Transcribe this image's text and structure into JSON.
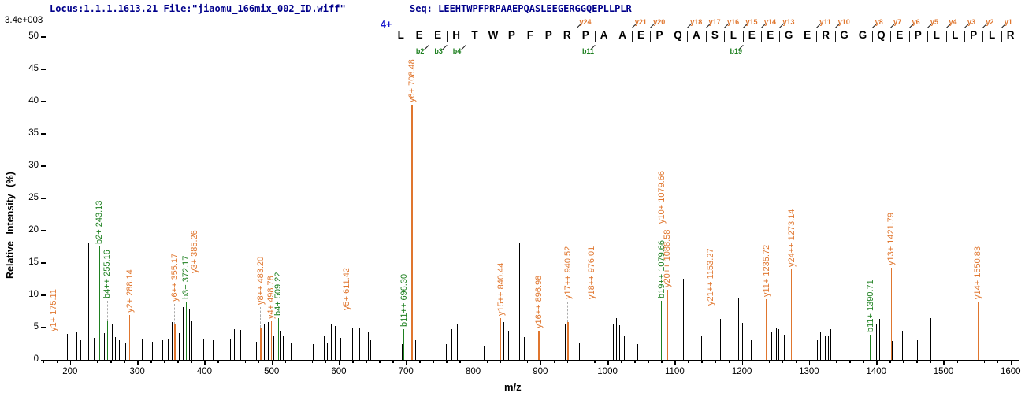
{
  "header": {
    "locus_file": "Locus:1.1.1.1613.21 File:\"jiaomu_166mix_002_ID.wiff\"",
    "seq_line": "Seq: LEEHTWPFPRPAAEPQASLEEGERGGQEPLLPLR",
    "max_intensity": "3.4e+003",
    "precursor_charge": "4+"
  },
  "axes": {
    "x_label": "m/z",
    "y_label": "Relative Intensity (%)",
    "x_range": [
      165,
      1612
    ],
    "y_range": [
      0,
      50.6
    ],
    "x_ticks_major": [
      200,
      300,
      400,
      500,
      600,
      700,
      800,
      900,
      1000,
      1100,
      1200,
      1300,
      1400,
      1500,
      1600
    ],
    "x_minor_start": 160,
    "x_minor_step": 20,
    "x_minor_end": 1600,
    "y_ticks": [
      0,
      5,
      10,
      15,
      20,
      25,
      30,
      35,
      40,
      45,
      50
    ]
  },
  "colors": {
    "y_ion": "#E0762E",
    "b_ion": "#1E8020",
    "peak": "#000000",
    "title": "#00008B",
    "charge": "#1414CC",
    "dash": "#ABABAB"
  },
  "chart_data": {
    "type": "bar",
    "subtype": "ms2-fragment-spectrum",
    "title": "",
    "xlabel": "m/z",
    "ylabel": "Relative Intensity (%)",
    "xlim": [
      165,
      1612
    ],
    "ylim": [
      0,
      50
    ],
    "sequence": "LEEHTWPFPRPAAEPQASLEEGERGGQEPLLPLR",
    "fragment_markers": [
      {
        "after": 2,
        "b": "b2"
      },
      {
        "after": 3,
        "b": "b3"
      },
      {
        "after": 4,
        "b": "b4"
      },
      {
        "after": 10,
        "y": "y24"
      },
      {
        "after": 11,
        "b": "b11"
      },
      {
        "after": 13,
        "y": "y21"
      },
      {
        "after": 14,
        "y": "y20"
      },
      {
        "after": 16,
        "y": "y18"
      },
      {
        "after": 17,
        "y": "y17"
      },
      {
        "after": 18,
        "y": "y16"
      },
      {
        "after": 19,
        "y": "y15",
        "b": "b19"
      },
      {
        "after": 20,
        "y": "y14"
      },
      {
        "after": 21,
        "y": "y13"
      },
      {
        "after": 23,
        "y": "y11"
      },
      {
        "after": 24,
        "y": "y10"
      },
      {
        "after": 26,
        "y": "y8"
      },
      {
        "after": 27,
        "y": "y7"
      },
      {
        "after": 28,
        "y": "y6"
      },
      {
        "after": 29,
        "y": "y5"
      },
      {
        "after": 30,
        "y": "y4"
      },
      {
        "after": 31,
        "y": "y3"
      },
      {
        "after": 32,
        "y": "y2"
      },
      {
        "after": 33,
        "y": "y1"
      }
    ],
    "labeled_peaks": [
      {
        "label": "y1+ 175.11",
        "mz": 175.11,
        "pct": 4.0,
        "ion": "y",
        "dashed": false,
        "raise": 0
      },
      {
        "label": "b2+ 243.13",
        "mz": 243.13,
        "pct": 17.5,
        "ion": "b",
        "dashed": false,
        "raise": 0
      },
      {
        "label": "b4++ 255.16",
        "mz": 255.16,
        "pct": 6.0,
        "ion": "b",
        "dashed": true,
        "raise": 0
      },
      {
        "label": "y2+ 288.14",
        "mz": 288.14,
        "pct": 7.0,
        "ion": "y",
        "dashed": false,
        "raise": 0
      },
      {
        "label": "y6++ 355.17",
        "mz": 355.17,
        "pct": 5.5,
        "ion": "y",
        "dashed": true,
        "raise": 0
      },
      {
        "label": "b3+ 372.17",
        "mz": 372.17,
        "pct": 9.0,
        "ion": "b",
        "dashed": false,
        "raise": 0
      },
      {
        "label": "y3+ 385.26",
        "mz": 385.26,
        "pct": 13.0,
        "ion": "y",
        "dashed": false,
        "raise": 0
      },
      {
        "label": "y8++ 483.20",
        "mz": 483.2,
        "pct": 5.0,
        "ion": "y",
        "dashed": true,
        "raise": 0
      },
      {
        "label": "y4+ 498.78",
        "mz": 498.78,
        "pct": 6.0,
        "ion": "y",
        "dashed": false,
        "raise": 0
      },
      {
        "label": "b4+ 509.22",
        "mz": 509.22,
        "pct": 6.5,
        "ion": "b",
        "dashed": false,
        "raise": 0
      },
      {
        "label": "y5+ 611.42",
        "mz": 611.42,
        "pct": 4.2,
        "ion": "y",
        "dashed": true,
        "raise": 0
      },
      {
        "label": "b11++ 696.30",
        "mz": 696.3,
        "pct": 4.8,
        "ion": "b",
        "dashed": false,
        "raise": 0
      },
      {
        "label": "y6+ 708.48",
        "mz": 708.48,
        "pct": 39.5,
        "ion": "y",
        "dashed": false,
        "raise": 0
      },
      {
        "label": "y15++ 840.44",
        "mz": 840.44,
        "pct": 6.5,
        "ion": "y",
        "dashed": false,
        "raise": 0
      },
      {
        "label": "y16++ 896.98",
        "mz": 896.98,
        "pct": 4.5,
        "ion": "y",
        "dashed": false,
        "raise": 0
      },
      {
        "label": "y17++ 940.52",
        "mz": 940.52,
        "pct": 5.8,
        "ion": "y",
        "dashed": true,
        "raise": 0
      },
      {
        "label": "y18++ 976.01",
        "mz": 976.01,
        "pct": 9.0,
        "ion": "y",
        "dashed": false,
        "raise": 0
      },
      {
        "label": "b19++ 1079.66",
        "mz": 1079.66,
        "pct": 9.2,
        "ion": "b",
        "dashed": false,
        "raise": 0
      },
      {
        "label": "y10+ 1079.66",
        "mz": 1079.66,
        "pct": 9.2,
        "ion": "y",
        "dashed": false,
        "raise": 95,
        "no_line": true
      },
      {
        "label": "y20++ 1088.58",
        "mz": 1088.58,
        "pct": 10.8,
        "ion": "y",
        "dashed": false,
        "raise": 0
      },
      {
        "label": "y21++ 1153.27",
        "mz": 1153.27,
        "pct": 4.9,
        "ion": "y",
        "dashed": true,
        "raise": 0
      },
      {
        "label": "y11+ 1235.72",
        "mz": 1235.72,
        "pct": 9.4,
        "ion": "y",
        "dashed": false,
        "raise": 0
      },
      {
        "label": "y24++ 1273.14",
        "mz": 1273.14,
        "pct": 14.0,
        "ion": "y",
        "dashed": false,
        "raise": 0
      },
      {
        "label": "b11+ 1390.71",
        "mz": 1390.71,
        "pct": 3.9,
        "ion": "b",
        "dashed": false,
        "raise": 0
      },
      {
        "label": "y13+ 1421.79",
        "mz": 1421.79,
        "pct": 14.3,
        "ion": "y",
        "dashed": false,
        "raise": 0
      },
      {
        "label": "y14+ 1550.83",
        "mz": 1550.83,
        "pct": 9.0,
        "ion": "y",
        "dashed": false,
        "raise": 0
      }
    ],
    "unlabeled_peaks": [
      [
        196,
        4.0
      ],
      [
        210,
        4.3
      ],
      [
        215,
        3.0
      ],
      [
        227,
        18.0
      ],
      [
        231,
        4.0
      ],
      [
        235,
        3.4
      ],
      [
        247,
        9.5
      ],
      [
        251,
        4.2
      ],
      [
        262,
        5.5
      ],
      [
        267,
        3.5
      ],
      [
        273,
        3.0
      ],
      [
        282,
        2.6
      ],
      [
        297,
        3.0
      ],
      [
        307,
        3.2
      ],
      [
        322,
        2.8
      ],
      [
        330,
        5.2
      ],
      [
        337,
        3.0
      ],
      [
        346,
        3.2
      ],
      [
        352,
        5.8
      ],
      [
        362,
        4.2
      ],
      [
        368,
        8.2
      ],
      [
        377,
        7.8
      ],
      [
        381,
        6.0
      ],
      [
        391,
        7.4
      ],
      [
        398,
        3.3
      ],
      [
        413,
        3.0
      ],
      [
        438,
        3.2
      ],
      [
        444,
        4.8
      ],
      [
        453,
        4.6
      ],
      [
        463,
        3.0
      ],
      [
        477,
        2.8
      ],
      [
        489,
        5.5
      ],
      [
        494,
        5.8
      ],
      [
        503,
        3.6
      ],
      [
        513,
        4.5
      ],
      [
        517,
        3.7
      ],
      [
        529,
        2.6
      ],
      [
        551,
        2.5
      ],
      [
        561,
        2.5
      ],
      [
        578,
        3.7
      ],
      [
        582,
        2.6
      ],
      [
        588,
        5.5
      ],
      [
        594,
        5.3
      ],
      [
        602,
        3.4
      ],
      [
        620,
        4.9
      ],
      [
        630,
        4.9
      ],
      [
        643,
        4.3
      ],
      [
        647,
        3.1
      ],
      [
        689,
        3.5
      ],
      [
        694,
        2.5
      ],
      [
        714,
        3.0
      ],
      [
        723,
        3.1
      ],
      [
        734,
        3.3
      ],
      [
        744,
        3.5
      ],
      [
        759,
        2.5
      ],
      [
        768,
        4.7
      ],
      [
        776,
        5.5
      ],
      [
        795,
        1.8
      ],
      [
        816,
        2.2
      ],
      [
        845,
        5.8
      ],
      [
        852,
        4.5
      ],
      [
        868,
        18.0
      ],
      [
        876,
        3.5
      ],
      [
        888,
        2.8
      ],
      [
        936,
        5.5
      ],
      [
        958,
        2.7
      ],
      [
        988,
        4.7
      ],
      [
        1008,
        5.5
      ],
      [
        1013,
        6.5
      ],
      [
        1017,
        5.4
      ],
      [
        1025,
        3.6
      ],
      [
        1045,
        2.5
      ],
      [
        1076,
        3.7
      ],
      [
        1113,
        12.5
      ],
      [
        1140,
        3.7
      ],
      [
        1148,
        5.0
      ],
      [
        1159,
        5.1
      ],
      [
        1167,
        6.3
      ],
      [
        1194,
        9.6
      ],
      [
        1201,
        5.7
      ],
      [
        1213,
        3.0
      ],
      [
        1244,
        4.3
      ],
      [
        1251,
        4.9
      ],
      [
        1254,
        4.8
      ],
      [
        1262,
        3.9
      ],
      [
        1281,
        3.0
      ],
      [
        1312,
        3.1
      ],
      [
        1316,
        4.3
      ],
      [
        1324,
        3.7
      ],
      [
        1328,
        3.7
      ],
      [
        1332,
        4.7
      ],
      [
        1400,
        5.5
      ],
      [
        1405,
        6.3
      ],
      [
        1408,
        3.5
      ],
      [
        1414,
        3.9
      ],
      [
        1418,
        3.7
      ],
      [
        1423,
        2.9
      ],
      [
        1438,
        4.5
      ],
      [
        1461,
        3.1
      ],
      [
        1481,
        6.5
      ],
      [
        1573,
        3.7
      ]
    ]
  }
}
